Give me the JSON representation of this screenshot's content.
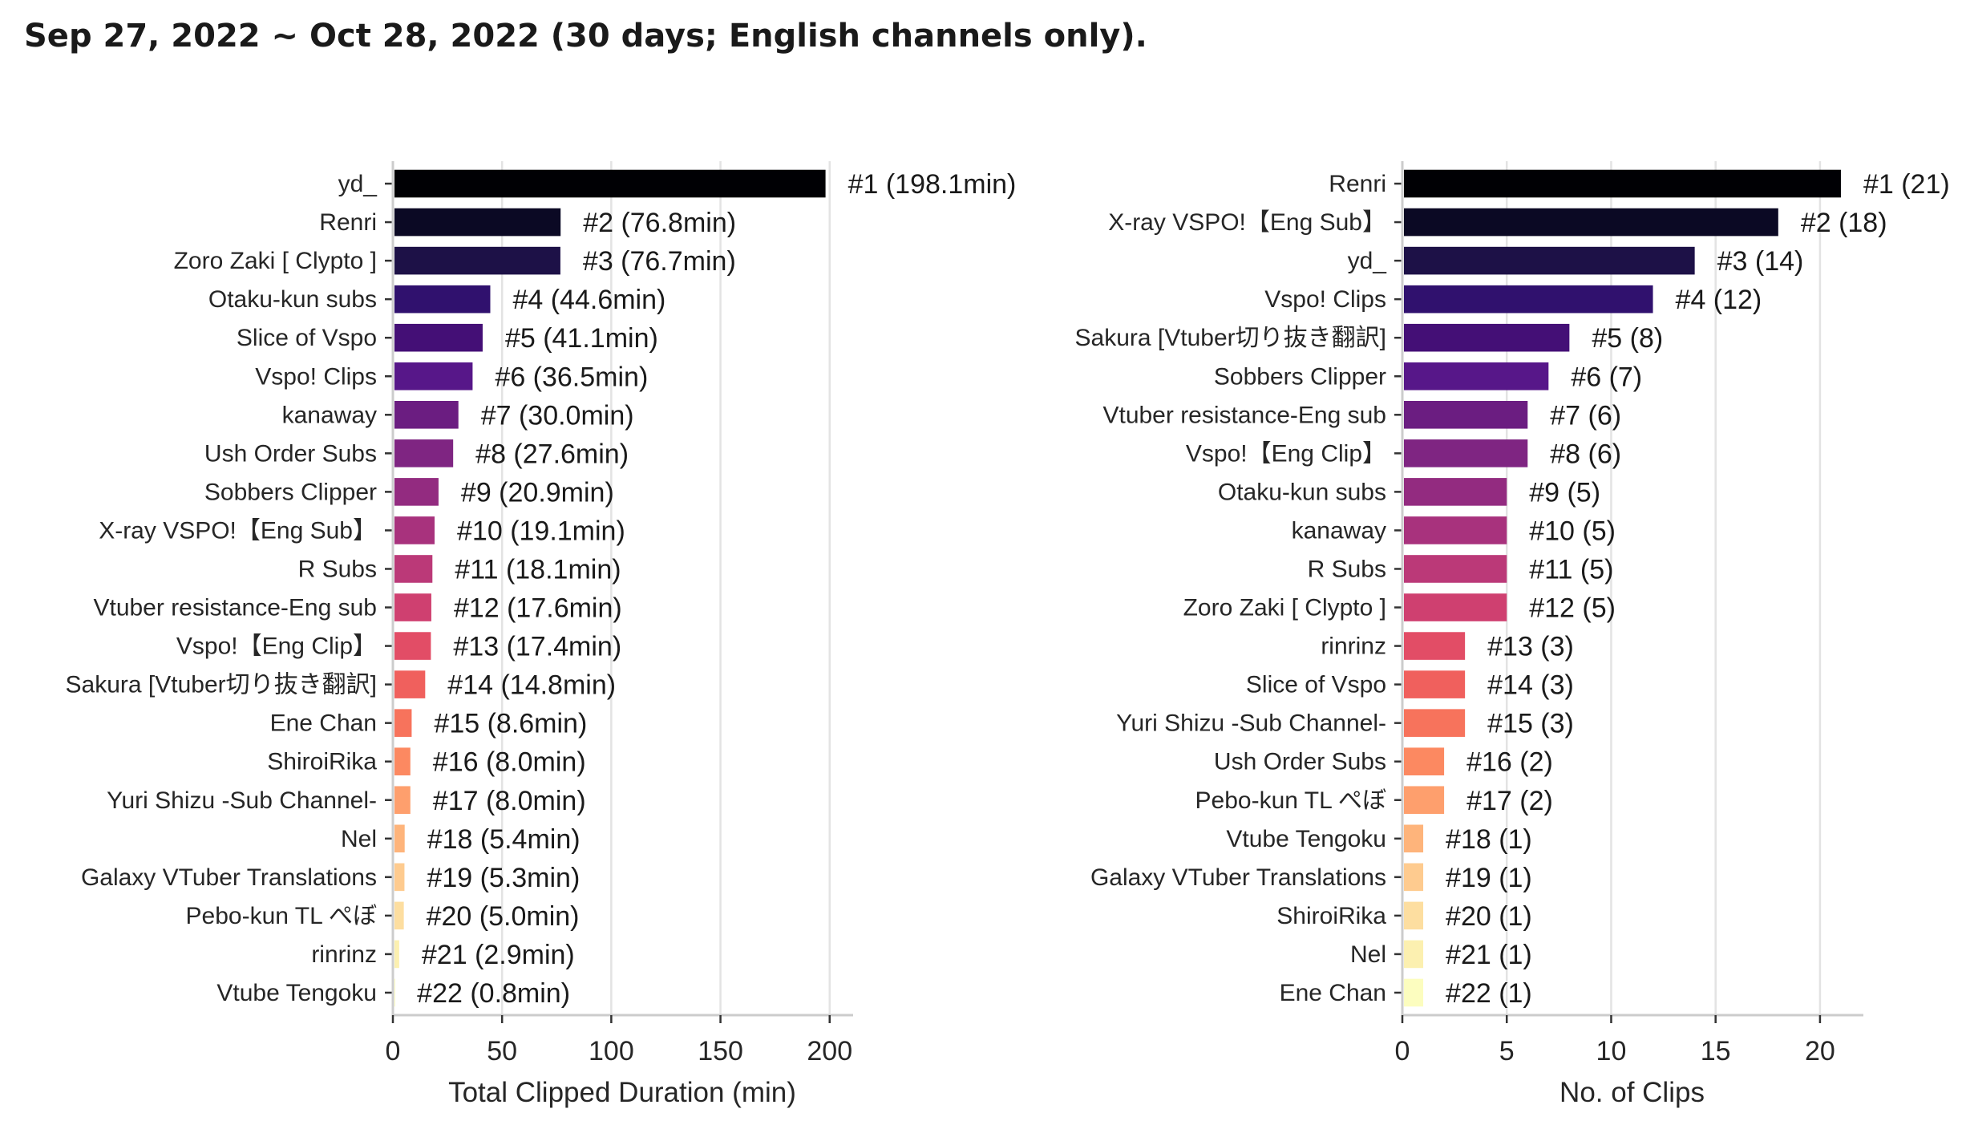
{
  "title": "Sep 27, 2022 ~ Oct 28, 2022 (30 days; English channels only).",
  "palette": [
    "#000004",
    "#0b0924",
    "#1d1147",
    "#30116e",
    "#440f76",
    "#571789",
    "#6b1d81",
    "#7f2582",
    "#932b80",
    "#a8327d",
    "#bb3978",
    "#cf4070",
    "#e24d66",
    "#f0605d",
    "#f7735c",
    "#fc8961",
    "#fe9f6d",
    "#feb47b",
    "#fecb8f",
    "#fddea0",
    "#fcf0b0",
    "#fcfdbf"
  ],
  "chart_data": [
    {
      "type": "bar",
      "orientation": "horizontal",
      "xlabel": "Total Clipped Duration (min)",
      "xlim": [
        0,
        210
      ],
      "xticks": [
        0,
        50,
        100,
        150,
        200
      ],
      "grid": true,
      "categories": [
        "yd_",
        "Renri",
        "Zoro Zaki [ Clypto ]",
        "Otaku-kun subs",
        "Slice of Vspo",
        "Vspo! Clips",
        "kanaway",
        "Ush Order Subs",
        "Sobbers Clipper",
        "X-ray VSPO!【Eng Sub】",
        "R Subs",
        "Vtuber resistance-Eng sub",
        "Vspo!【Eng Clip】",
        "Sakura [Vtuber切り抜き翻訳]",
        "Ene Chan",
        "ShiroiRika",
        "Yuri Shizu -Sub Channel-",
        "Nel",
        "Galaxy VTuber Translations",
        "Pebo-kun TL ぺぼ",
        "rinrinz",
        "Vtube Tengoku"
      ],
      "values": [
        198.1,
        76.8,
        76.7,
        44.6,
        41.1,
        36.5,
        30.0,
        27.6,
        20.9,
        19.1,
        18.1,
        17.6,
        17.4,
        14.8,
        8.6,
        8.0,
        8.0,
        5.4,
        5.3,
        5.0,
        2.9,
        0.8
      ],
      "data_labels": [
        "#1 (198.1min)",
        "#2 (76.8min)",
        "#3 (76.7min)",
        "#4 (44.6min)",
        "#5 (41.1min)",
        "#6 (36.5min)",
        "#7 (30.0min)",
        "#8 (27.6min)",
        "#9 (20.9min)",
        "#10 (19.1min)",
        "#11 (18.1min)",
        "#12 (17.6min)",
        "#13 (17.4min)",
        "#14 (14.8min)",
        "#15 (8.6min)",
        "#16 (8.0min)",
        "#17 (8.0min)",
        "#18 (5.4min)",
        "#19 (5.3min)",
        "#20 (5.0min)",
        "#21 (2.9min)",
        "#22 (0.8min)"
      ]
    },
    {
      "type": "bar",
      "orientation": "horizontal",
      "xlabel": "No. of Clips",
      "xlim": [
        0,
        22
      ],
      "xticks": [
        0,
        5,
        10,
        15,
        20
      ],
      "grid": true,
      "categories": [
        "Renri",
        "X-ray VSPO!【Eng Sub】",
        "yd_",
        "Vspo! Clips",
        "Sakura [Vtuber切り抜き翻訳]",
        "Sobbers Clipper",
        "Vtuber resistance-Eng sub",
        "Vspo!【Eng Clip】",
        "Otaku-kun subs",
        "kanaway",
        "R Subs",
        "Zoro Zaki [ Clypto ]",
        "rinrinz",
        "Slice of Vspo",
        "Yuri Shizu -Sub Channel-",
        "Ush Order Subs",
        "Pebo-kun TL ぺぼ",
        "Vtube Tengoku",
        "Galaxy VTuber Translations",
        "ShiroiRika",
        "Nel",
        "Ene Chan"
      ],
      "values": [
        21,
        18,
        14,
        12,
        8,
        7,
        6,
        6,
        5,
        5,
        5,
        5,
        3,
        3,
        3,
        2,
        2,
        1,
        1,
        1,
        1,
        1
      ],
      "data_labels": [
        "#1 (21)",
        "#2 (18)",
        "#3 (14)",
        "#4 (12)",
        "#5 (8)",
        "#6 (7)",
        "#7 (6)",
        "#8 (6)",
        "#9 (5)",
        "#10 (5)",
        "#11 (5)",
        "#12 (5)",
        "#13 (3)",
        "#14 (3)",
        "#15 (3)",
        "#16 (2)",
        "#17 (2)",
        "#18 (1)",
        "#19 (1)",
        "#20 (1)",
        "#21 (1)",
        "#22 (1)"
      ]
    }
  ]
}
